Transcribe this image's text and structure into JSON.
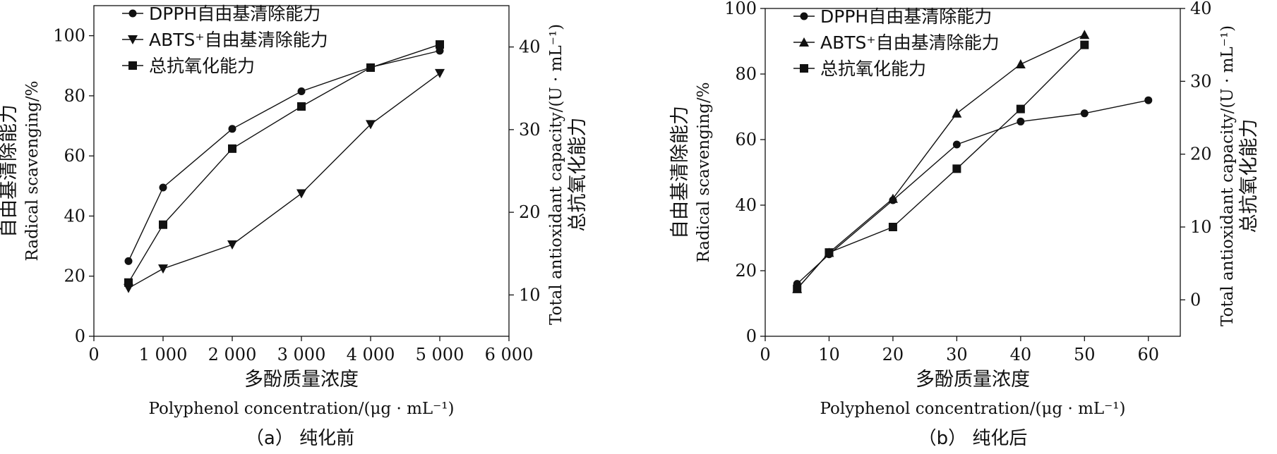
{
  "chart_data": [
    {
      "type": "line",
      "caption": "（a） 纯化前",
      "xlabel_cn": "多酚质量浓度",
      "xlabel_en": "Polyphenol concentration/(μg · mL⁻¹)",
      "ylabel_cn": "自由基清除能力",
      "ylabel_en": "Radical scavenging/%",
      "y2label_en": "Total antioxidant capacity/(U · mL⁻¹)",
      "y2label_cn": "总抗氧化能力",
      "xlim": [
        0,
        6000
      ],
      "ylim": [
        0,
        110
      ],
      "y2lim": [
        5,
        45
      ],
      "x_ticks": [
        0,
        1000,
        2000,
        3000,
        4000,
        5000,
        6000
      ],
      "x_tick_labels": [
        "0",
        "1 000",
        "2 000",
        "3 000",
        "4 000",
        "5 000",
        "6 000"
      ],
      "y_ticks": [
        0,
        20,
        40,
        60,
        80,
        100
      ],
      "y_tick_labels": [
        "0",
        "20",
        "40",
        "60",
        "80",
        "100"
      ],
      "y2_ticks": [
        10,
        20,
        30,
        40
      ],
      "y2_tick_labels": [
        "10",
        "20",
        "30",
        "40"
      ],
      "legend_position": "top-left",
      "series": [
        {
          "name": "DPPH自由基清除能力",
          "marker": "circle",
          "axis": "left",
          "x": [
            500,
            1000,
            2000,
            3000,
            4000,
            5000
          ],
          "y": [
            25,
            49.5,
            69,
            81.5,
            89.5,
            95
          ]
        },
        {
          "name": "ABTS⁺自由基清除能力",
          "marker": "triangle-down",
          "axis": "left",
          "x": [
            500,
            1000,
            2000,
            3000,
            4000,
            5000
          ],
          "y": [
            16,
            22.5,
            30.5,
            47.5,
            70.5,
            87.5
          ]
        },
        {
          "name": "总抗氧化能力",
          "marker": "square",
          "axis": "right",
          "x": [
            500,
            1000,
            2000,
            3000,
            4000,
            5000
          ],
          "y": [
            11.5,
            18.5,
            27.7,
            32.8,
            37.5,
            40.3
          ]
        }
      ]
    },
    {
      "type": "line",
      "caption": "（b） 纯化后",
      "xlabel_cn": "多酚质量浓度",
      "xlabel_en": "Polyphenol concentration/(μg · mL⁻¹)",
      "ylabel_cn": "自由基清除能力",
      "ylabel_en": "Radical scavenging/%",
      "y2label_en": "Total antioxidant capacity/(U · mL⁻¹)",
      "y2label_cn": "总抗氧化能力",
      "xlim": [
        0,
        65
      ],
      "ylim": [
        0,
        100
      ],
      "y2lim": [
        -5,
        40
      ],
      "x_ticks": [
        0,
        10,
        20,
        30,
        40,
        50,
        60
      ],
      "x_tick_labels": [
        "0",
        "10",
        "20",
        "30",
        "40",
        "50",
        "60"
      ],
      "y_ticks": [
        0,
        20,
        40,
        60,
        80,
        100
      ],
      "y_tick_labels": [
        "0",
        "20",
        "40",
        "60",
        "80",
        "100"
      ],
      "y2_ticks": [
        0,
        10,
        20,
        30,
        40
      ],
      "y2_tick_labels": [
        "0",
        "10",
        "20",
        "30",
        "40"
      ],
      "legend_position": "top-left",
      "series": [
        {
          "name": "DPPH自由基清除能力",
          "marker": "circle",
          "axis": "left",
          "x": [
            5,
            10,
            20,
            30,
            40,
            50,
            60
          ],
          "y": [
            16,
            25,
            41.5,
            58.5,
            65.5,
            68,
            72
          ]
        },
        {
          "name": "ABTS⁺自由基清除能力",
          "marker": "triangle-up",
          "axis": "left",
          "x": [
            5,
            10,
            20,
            30,
            40,
            50
          ],
          "y": [
            14.5,
            25.5,
            42,
            68,
            83,
            92
          ]
        },
        {
          "name": "总抗氧化能力",
          "marker": "square",
          "axis": "right",
          "x": [
            5,
            10,
            20,
            30,
            40,
            50
          ],
          "y": [
            1.5,
            6.5,
            10,
            18,
            26.2,
            35
          ]
        }
      ]
    }
  ]
}
